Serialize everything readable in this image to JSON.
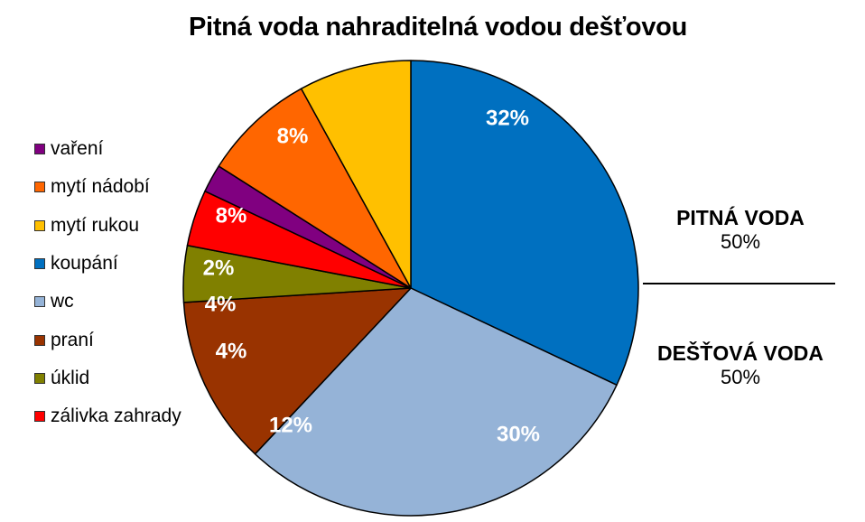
{
  "chart_data": {
    "type": "pie",
    "title": "Pitná voda nahraditelná vodou dešťovou",
    "slices": [
      {
        "name": "koupání",
        "value": 32,
        "label": "32%",
        "color": "#0070C0"
      },
      {
        "name": "wc",
        "value": 30,
        "label": "30%",
        "color": "#95B3D7"
      },
      {
        "name": "praní",
        "value": 12,
        "label": "12%",
        "color": "#993300"
      },
      {
        "name": "úklid",
        "value": 4,
        "label": "4%",
        "color": "#808000"
      },
      {
        "name": "zálivka zahrady",
        "value": 4,
        "label": "4%",
        "color": "#FF0000"
      },
      {
        "name": "vaření",
        "value": 2,
        "label": "2%",
        "color": "#800080"
      },
      {
        "name": "mytí nádobí",
        "value": 8,
        "label": "8%",
        "color": "#FF6600"
      },
      {
        "name": "mytí rukou",
        "value": 8,
        "label": "8%",
        "color": "#FFC000"
      }
    ],
    "legend": {
      "placement": "left",
      "entries": [
        {
          "name": "vaření",
          "color": "#800080"
        },
        {
          "name": "mytí nádobí",
          "color": "#FF6600"
        },
        {
          "name": "mytí rukou",
          "color": "#FFC000"
        },
        {
          "name": "koupání",
          "color": "#0070C0"
        },
        {
          "name": "wc",
          "color": "#95B3D7"
        },
        {
          "name": "praní",
          "color": "#993300"
        },
        {
          "name": "úklid",
          "color": "#808000"
        },
        {
          "name": "zálivka zahrady",
          "color": "#FF0000"
        }
      ]
    }
  },
  "annotations": {
    "top": {
      "line1": "PITNÁ VODA",
      "line2": "50%"
    },
    "bottom": {
      "line1": "DEŠŤOVÁ VODA",
      "line2": "50%"
    }
  }
}
